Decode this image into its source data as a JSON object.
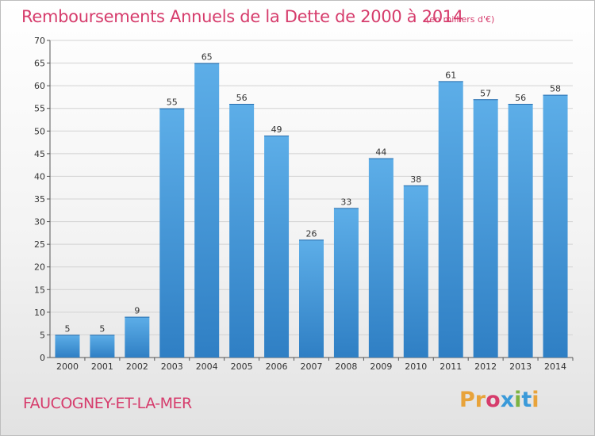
{
  "header": {
    "title": "Remboursements Annuels de la Dette de 2000 à 2014",
    "unit": "(en milliers d'€)"
  },
  "footer": {
    "commune": "FAUCOGNEY-ET-LA-MER",
    "logo": "Proxiti"
  },
  "colors": {
    "title": "#d63c6c",
    "bar_top": "#5daee8",
    "bar_bottom": "#2f7fc4",
    "logo": [
      "#e8a33a",
      "#e8a33a",
      "#d63c6c",
      "#3a9ad9",
      "#7cb342",
      "#3a9ad9",
      "#e8a33a"
    ]
  },
  "chart_data": {
    "type": "bar",
    "title": "Remboursements Annuels de la Dette de 2000 à 2014",
    "xlabel": "",
    "ylabel": "",
    "categories": [
      "2000",
      "2001",
      "2002",
      "2003",
      "2004",
      "2005",
      "2006",
      "2007",
      "2008",
      "2009",
      "2010",
      "2011",
      "2012",
      "2013",
      "2014"
    ],
    "values": [
      5,
      5,
      9,
      55,
      65,
      56,
      49,
      26,
      33,
      44,
      38,
      61,
      57,
      56,
      58
    ],
    "ylim": [
      0,
      70
    ],
    "yticks": [
      0,
      5,
      10,
      15,
      20,
      25,
      30,
      35,
      40,
      45,
      50,
      55,
      60,
      65,
      70
    ],
    "grid": true,
    "legend": "none"
  }
}
